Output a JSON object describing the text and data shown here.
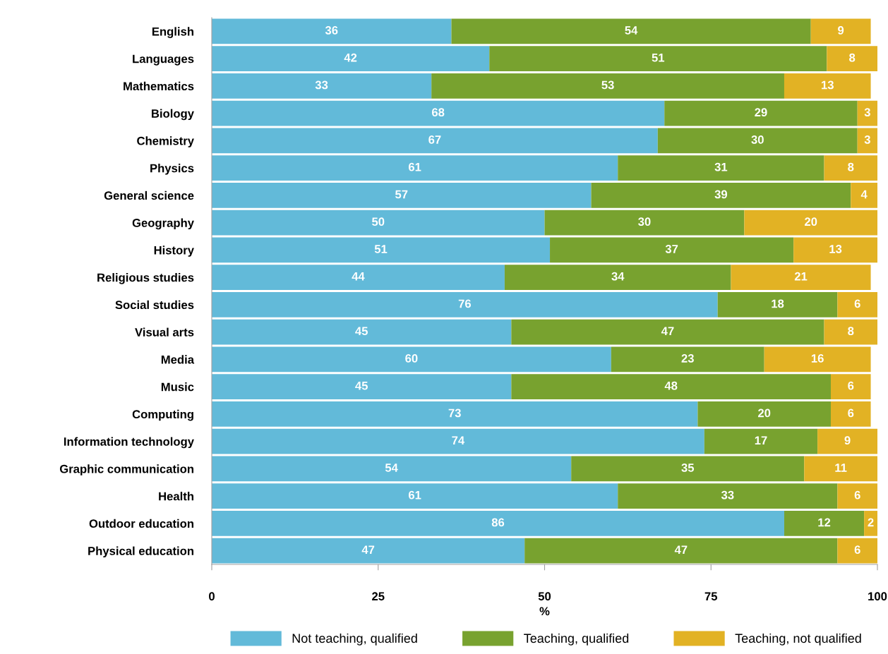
{
  "chart_data": {
    "type": "bar",
    "orientation": "horizontal",
    "stacked": true,
    "xlabel": "%",
    "categories": [
      "English",
      "Languages",
      "Mathematics",
      "Biology",
      "Chemistry",
      "Physics",
      "General science",
      "Geography",
      "History",
      "Religious studies",
      "Social studies",
      "Visual arts",
      "Media",
      "Music",
      "Computing",
      "Information technology",
      "Graphic communication",
      "Health",
      "Outdoor education",
      "Physical education"
    ],
    "series": [
      {
        "name": "Not teaching, qualified",
        "color": "#62bad9",
        "values": [
          36,
          41.7,
          33,
          68,
          67,
          61,
          57,
          50,
          50.8,
          44,
          76,
          45,
          60,
          45,
          73,
          74,
          54,
          61,
          86,
          47
        ],
        "value_labels": [
          "36",
          "42",
          "33",
          "68",
          "67",
          "61",
          "57",
          "50",
          "51",
          "44",
          "76",
          "45",
          "60",
          "45",
          "73",
          "74",
          "54",
          "61",
          "86",
          "47"
        ]
      },
      {
        "name": "Teaching, qualified",
        "color": "#78a22f",
        "values": [
          54,
          50.7,
          53,
          29,
          30,
          31,
          39,
          30,
          36.6,
          34,
          18,
          47,
          23,
          48,
          20,
          17,
          35,
          33,
          12,
          47
        ],
        "value_labels": [
          "54",
          "51",
          "53",
          "29",
          "30",
          "31",
          "39",
          "30",
          "37",
          "34",
          "18",
          "47",
          "23",
          "48",
          "20",
          "17",
          "35",
          "33",
          "12",
          "47"
        ]
      },
      {
        "name": "Teaching, not qualified",
        "color": "#e2b224",
        "values": [
          9,
          7.6,
          13,
          3,
          3,
          8,
          4,
          20,
          12.6,
          21,
          6,
          8,
          16,
          6,
          6,
          9,
          11,
          6,
          2,
          6
        ],
        "value_labels": [
          "9",
          "8",
          "13",
          "3",
          "3",
          "8",
          "4",
          "20",
          "13",
          "21",
          "6",
          "8",
          "16",
          "6",
          "6",
          "9",
          "11",
          "6",
          "2",
          "6"
        ]
      }
    ],
    "xlim": [
      0,
      100
    ],
    "xticks": [
      0,
      25,
      50,
      75,
      100
    ],
    "grid": false,
    "legend": "bottom"
  }
}
